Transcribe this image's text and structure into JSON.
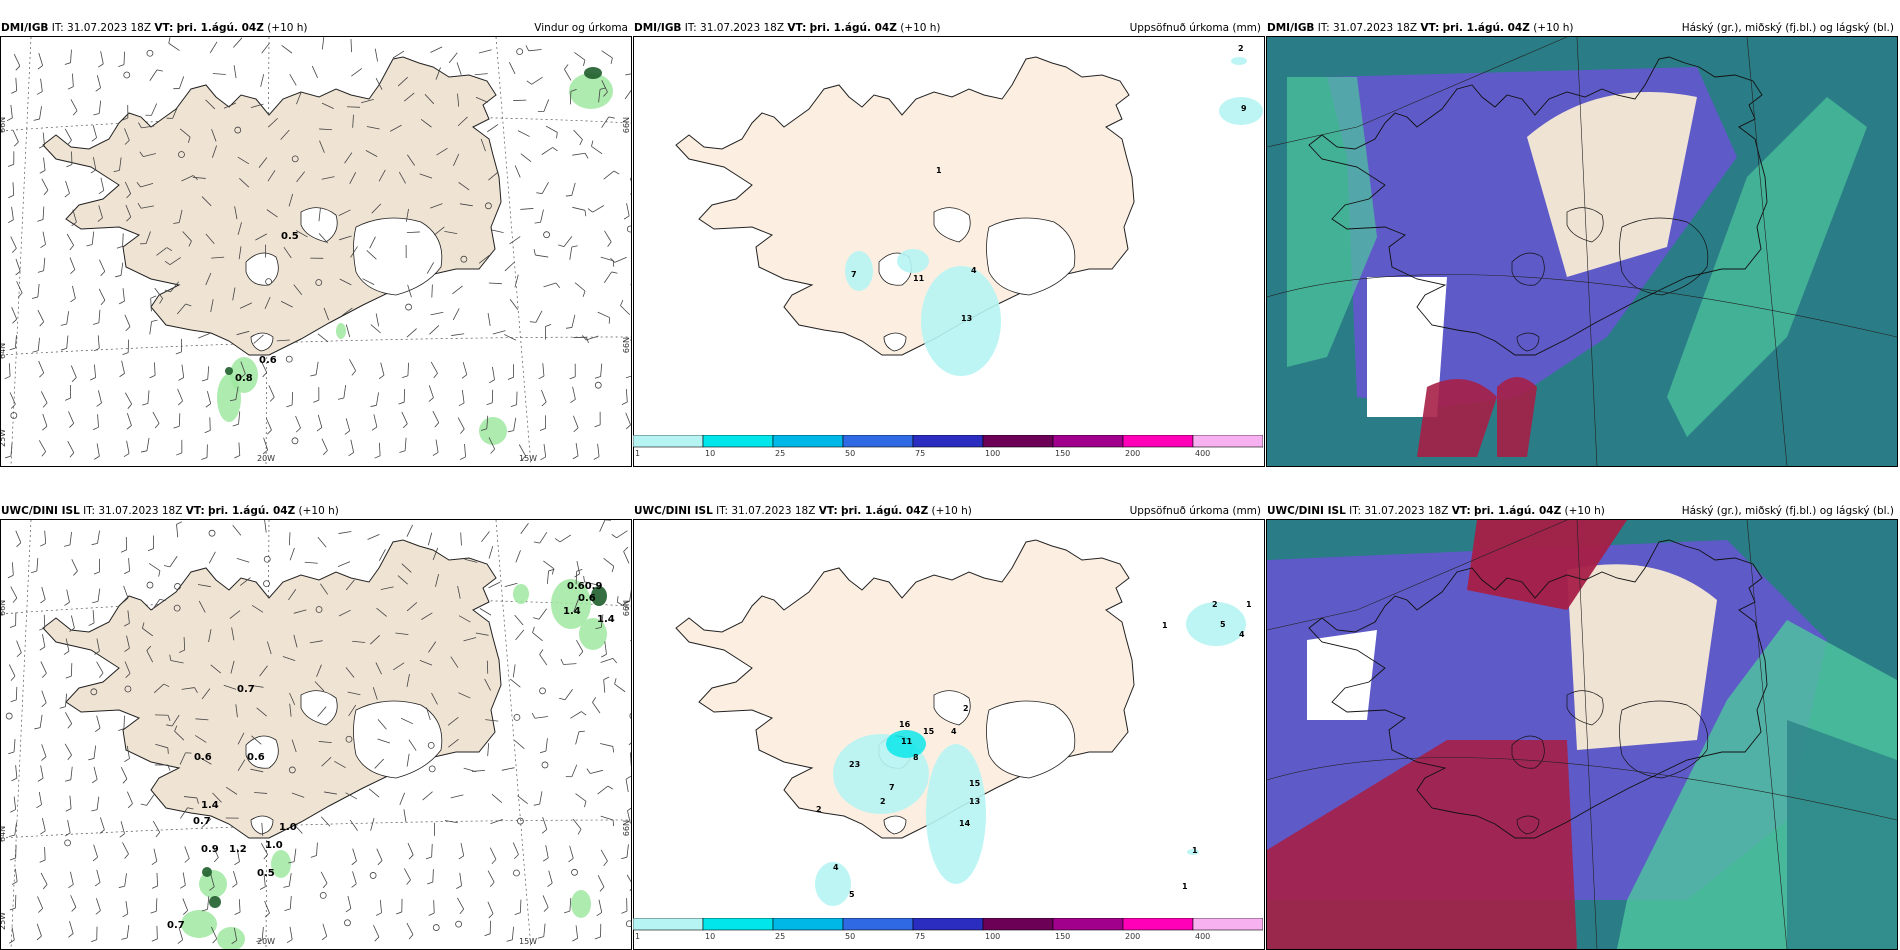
{
  "colors": {
    "land": "#efe3d3",
    "land_precip": "#fcefe1",
    "cloud_low": "#2a7c86",
    "cloud_mid": "#5e5ac8",
    "cloud_high": "#a61f47",
    "cloud_green": "#4fc79d",
    "precip_green": "#9fe8a0",
    "precip_dark": "#1f5e2c",
    "colorbar": [
      "#b6f4f4",
      "#00e6ea",
      "#00b8e8",
      "#2f6ae4",
      "#2a2dbf",
      "#6c0057",
      "#a1008c",
      "#ff00b8",
      "#f7b0f0"
    ]
  },
  "rows": [
    {
      "model": "DMI/IGB",
      "panels": [
        {
          "kind": "wind",
          "model": "DMI/IGB",
          "it_label": "IT:",
          "it_value": "31.07.2023 18Z",
          "vt_label": "VT:",
          "vt_value": "þri. 1.ágú. 04Z",
          "lead": "(+10 h)",
          "title": "Vindur og úrkoma",
          "gridlabels": [
            "66N",
            "64N",
            "25W",
            "20W",
            "15W",
            "N99",
            "N99"
          ],
          "values": [
            "0.5",
            "0.6",
            "0.8"
          ]
        },
        {
          "kind": "precip",
          "model": "DMI/IGB",
          "it_label": "IT:",
          "it_value": "31.07.2023 18Z",
          "vt_label": "VT:",
          "vt_value": "þri. 1.ágú. 04Z",
          "lead": "(+10 h)",
          "title": "Uppsöfnuð úrkoma (mm)",
          "values": [
            "2",
            "9",
            "1",
            "7",
            "11",
            "4",
            "13"
          ],
          "colorbar_ticks": [
            "1",
            "10",
            "25",
            "50",
            "75",
            "100",
            "150",
            "200",
            "400"
          ]
        },
        {
          "kind": "cloud",
          "model": "DMI/IGB",
          "it_label": "IT:",
          "it_value": "31.07.2023 18Z",
          "vt_label": "VT:",
          "vt_value": "þri. 1.ágú. 04Z",
          "lead": "(+10 h)",
          "title": "Háský (gr.), miðský (fj.bl.) og lágský (bl.)"
        }
      ]
    },
    {
      "model": "UWC/DINI ISL",
      "panels": [
        {
          "kind": "wind",
          "model": "UWC/DINI ISL",
          "it_label": "IT:",
          "it_value": "31.07.2023 18Z",
          "vt_label": "VT:",
          "vt_value": "þri. 1.ágú. 04Z",
          "lead": "(+10 h)",
          "title": "",
          "gridlabels": [
            "66N",
            "64N",
            "25W",
            "20W",
            "15W",
            "N99",
            "N99"
          ],
          "values": [
            "0.60.9",
            "0.6",
            "1.4",
            "1.4",
            "0.7",
            "0.6",
            "0.6",
            "1.4",
            "0.7",
            "0.9",
            "1.2",
            "1.0",
            "1.0",
            "0.5",
            "0.7"
          ]
        },
        {
          "kind": "precip",
          "model": "UWC/DINI ISL",
          "it_label": "IT:",
          "it_value": "31.07.2023 18Z",
          "vt_label": "VT:",
          "vt_value": "þri. 1.ágú. 04Z",
          "lead": "(+10 h)",
          "title": "Uppsöfnuð úrkoma (mm)",
          "values": [
            "2",
            "1",
            "5",
            "4",
            "1",
            "2",
            "4",
            "16",
            "15",
            "11",
            "8",
            "23",
            "7",
            "2",
            "15",
            "13",
            "14",
            "2",
            "4",
            "5",
            "1",
            "1"
          ],
          "colorbar_ticks": [
            "1",
            "10",
            "25",
            "50",
            "75",
            "100",
            "150",
            "200",
            "400"
          ]
        },
        {
          "kind": "cloud",
          "model": "UWC/DINI ISL",
          "it_label": "IT:",
          "it_value": "31.07.2023 18Z",
          "vt_label": "VT:",
          "vt_value": "þri. 1.ágú. 04Z",
          "lead": "(+10 h)",
          "title": "Háský (gr.), miðský (fj.bl.) og lágský (bl.)"
        }
      ]
    }
  ]
}
